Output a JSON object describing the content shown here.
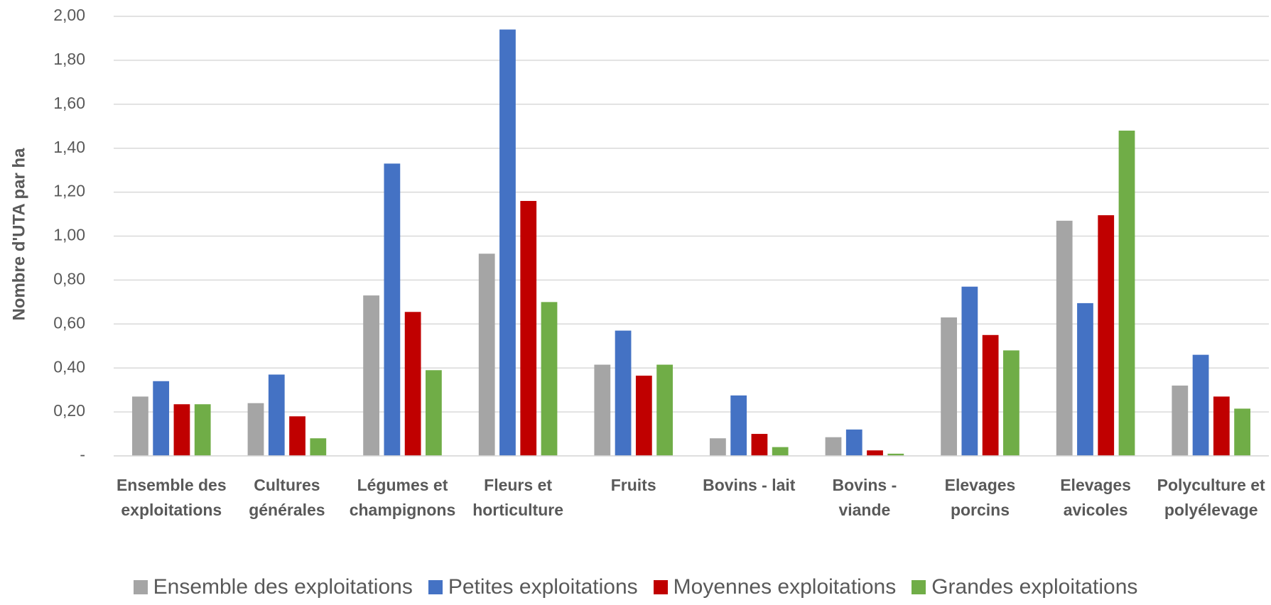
{
  "chart_data": {
    "type": "bar",
    "y_label": "Nombre d'UTA par ha",
    "categories": [
      "Ensemble des exploitations",
      "Cultures générales",
      "Légumes et champignons",
      "Fleurs et horticulture",
      "Fruits",
      "Bovins - lait",
      "Bovins - viande",
      "Elevages porcins",
      "Elevages avicoles",
      "Polyculture et polyélevage"
    ],
    "series": [
      {
        "name": "Ensemble des exploitations",
        "color": "#a5a5a5",
        "values": [
          0.27,
          0.24,
          0.73,
          0.92,
          0.415,
          0.08,
          0.085,
          0.63,
          1.07,
          0.32
        ]
      },
      {
        "name": "Petites exploitations",
        "color": "#4472c4",
        "values": [
          0.34,
          0.37,
          1.33,
          1.94,
          0.57,
          0.275,
          0.12,
          0.77,
          0.695,
          0.46
        ]
      },
      {
        "name": "Moyennes exploitations",
        "color": "#c00000",
        "values": [
          0.235,
          0.18,
          0.655,
          1.16,
          0.365,
          0.1,
          0.025,
          0.55,
          1.095,
          0.27
        ]
      },
      {
        "name": "Grandes exploitations",
        "color": "#70ad47",
        "values": [
          0.235,
          0.08,
          0.39,
          0.7,
          0.415,
          0.04,
          0.01,
          0.48,
          1.48,
          0.215
        ]
      }
    ],
    "ylim": [
      0,
      2
    ],
    "yticks": [
      {
        "value": 0,
        "label": "-"
      },
      {
        "value": 0.2,
        "label": "0,20"
      },
      {
        "value": 0.4,
        "label": "0,40"
      },
      {
        "value": 0.6,
        "label": "0,60"
      },
      {
        "value": 0.8,
        "label": "0,80"
      },
      {
        "value": 1,
        "label": "1,00"
      },
      {
        "value": 1.2,
        "label": "1,20"
      },
      {
        "value": 1.4,
        "label": "1,40"
      },
      {
        "value": 1.6,
        "label": "1,60"
      },
      {
        "value": 1.8,
        "label": "1,80"
      },
      {
        "value": 2,
        "label": "2,00"
      }
    ],
    "grid": true,
    "legend": "bottom"
  }
}
